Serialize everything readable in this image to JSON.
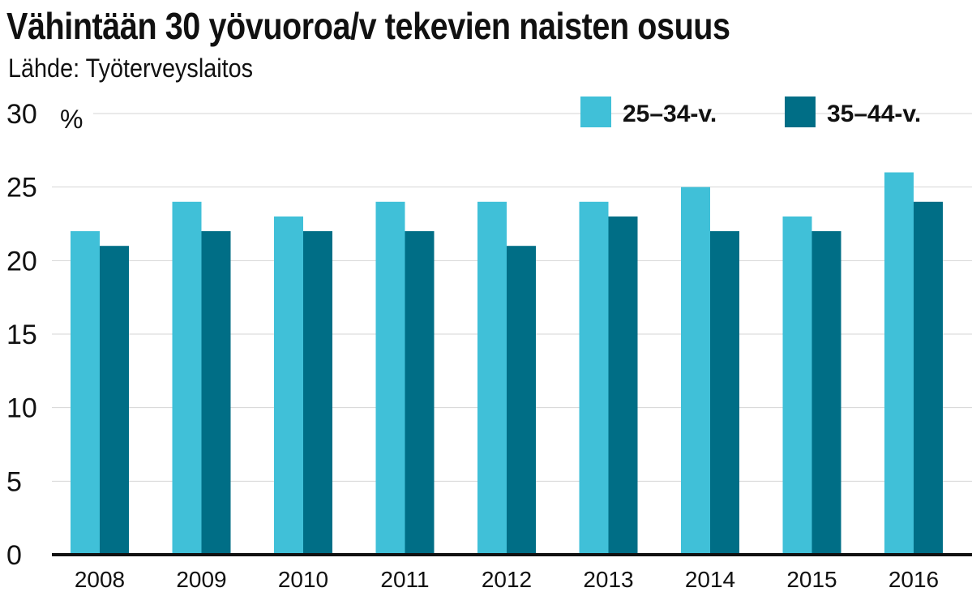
{
  "chart_data": {
    "type": "bar",
    "title": "Vähintään 30 yövuoroa/v tekevien naisten osuus",
    "subtitle": "Lähde: Työterveyslaitos",
    "ylabel": "%",
    "categories": [
      "2008",
      "2009",
      "2010",
      "2011",
      "2012",
      "2013",
      "2014",
      "2015",
      "2016"
    ],
    "series": [
      {
        "name": "25–34-v.",
        "color": "#40c0d8",
        "values": [
          22,
          24,
          23,
          24,
          24,
          24,
          25,
          23,
          26
        ]
      },
      {
        "name": "35–44-v.",
        "color": "#006e86",
        "values": [
          21,
          22,
          22,
          22,
          21,
          23,
          22,
          22,
          24
        ]
      }
    ],
    "ylim": [
      0,
      30
    ],
    "yticks": [
      "0",
      "5",
      "10",
      "15",
      "20",
      "25",
      "30"
    ],
    "grid": true,
    "legend_position": "top-right"
  }
}
